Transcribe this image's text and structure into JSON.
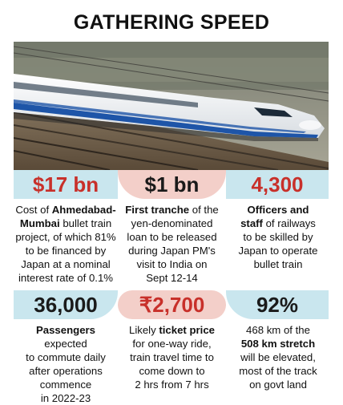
{
  "title": "GATHERING SPEED",
  "colors": {
    "blue_band": "#c9e6ee",
    "pink_band": "#f3cfc9",
    "red_value": "#c8302a",
    "dark_value": "#1a1a1a"
  },
  "row1": {
    "col1": {
      "value": "$17 bn",
      "text_a": "Cost of ",
      "text_b_bold": "Ahmedabad-",
      "text_c_bold": "Mumbai",
      "text_d": " bullet train",
      "text_e": "project, of which 81%",
      "text_f": "to be financed by",
      "text_g": "Japan at a nominal",
      "text_h": "interest rate of 0.1%"
    },
    "col2": {
      "value": "$1 bn",
      "text_a_bold": "First tranche",
      "text_b": " of the",
      "text_c": "yen-denominated",
      "text_d": "loan to be released",
      "text_e": "during Japan PM's",
      "text_f": "visit to India on",
      "text_g": "Sept 12-14"
    },
    "col3": {
      "value": "4,300",
      "text_a_bold": "Officers and",
      "text_b_bold": "staff",
      "text_c": " of railways",
      "text_d": "to be skilled by",
      "text_e": "Japan to operate",
      "text_f": "bullet train"
    }
  },
  "row2": {
    "col1": {
      "value": "36,000",
      "text_a_bold": "Passengers",
      "text_b": " expected",
      "text_c": "to commute daily",
      "text_d": "after operations",
      "text_e": "commence",
      "text_f": "in 2022-23"
    },
    "col2": {
      "value": "₹2,700",
      "text_a": "Likely ",
      "text_b_bold": "ticket price",
      "text_c": "for one-way ride,",
      "text_d": "train travel time to",
      "text_e": "come down to",
      "text_f": "2 hrs from 7 hrs"
    },
    "col3": {
      "value": "92%",
      "text_a": "468 km of the",
      "text_b_bold": "508 km stretch",
      "text_c": "will be elevated,",
      "text_d": "most of the track",
      "text_e": "on govt land"
    }
  }
}
